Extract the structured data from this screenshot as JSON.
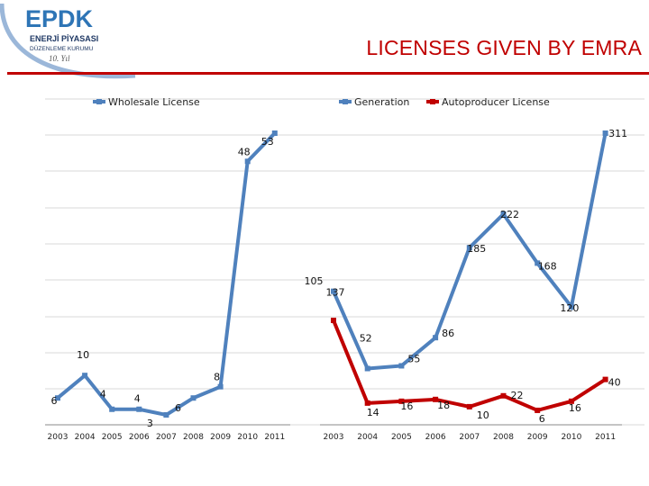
{
  "header": {
    "title": "LICENSES GIVEN BY EMRA",
    "logo": {
      "mark": "EPDK",
      "line1": "ENERJİ PİYASASI",
      "line2": "DÜZENLEME KURUMU",
      "sub": "10. Yıl"
    }
  },
  "chart_data": [
    {
      "type": "line",
      "x": [
        "2003",
        "2004",
        "2005",
        "2006",
        "2007",
        "2008",
        "2009",
        "2010",
        "2011"
      ],
      "series": [
        {
          "name": "Wholesale License",
          "values": [
            6,
            10,
            4,
            4,
            3,
            6,
            8,
            48,
            53
          ],
          "color": "#4f81bd"
        }
      ],
      "grid": true,
      "legend": "top-left"
    },
    {
      "type": "line",
      "x": [
        "2003",
        "2004",
        "2005",
        "2006",
        "2007",
        "2008",
        "2009",
        "2010",
        "2011"
      ],
      "series": [
        {
          "name": "Generation",
          "values": [
            137,
            52,
            55,
            86,
            185,
            222,
            168,
            120,
            311
          ],
          "color": "#4f81bd"
        },
        {
          "name": "Autoproducer License",
          "values": [
            105,
            14,
            16,
            18,
            10,
            22,
            6,
            16,
            40
          ],
          "color": "#c00000"
        }
      ],
      "grid": true,
      "legend": "top-center"
    }
  ]
}
